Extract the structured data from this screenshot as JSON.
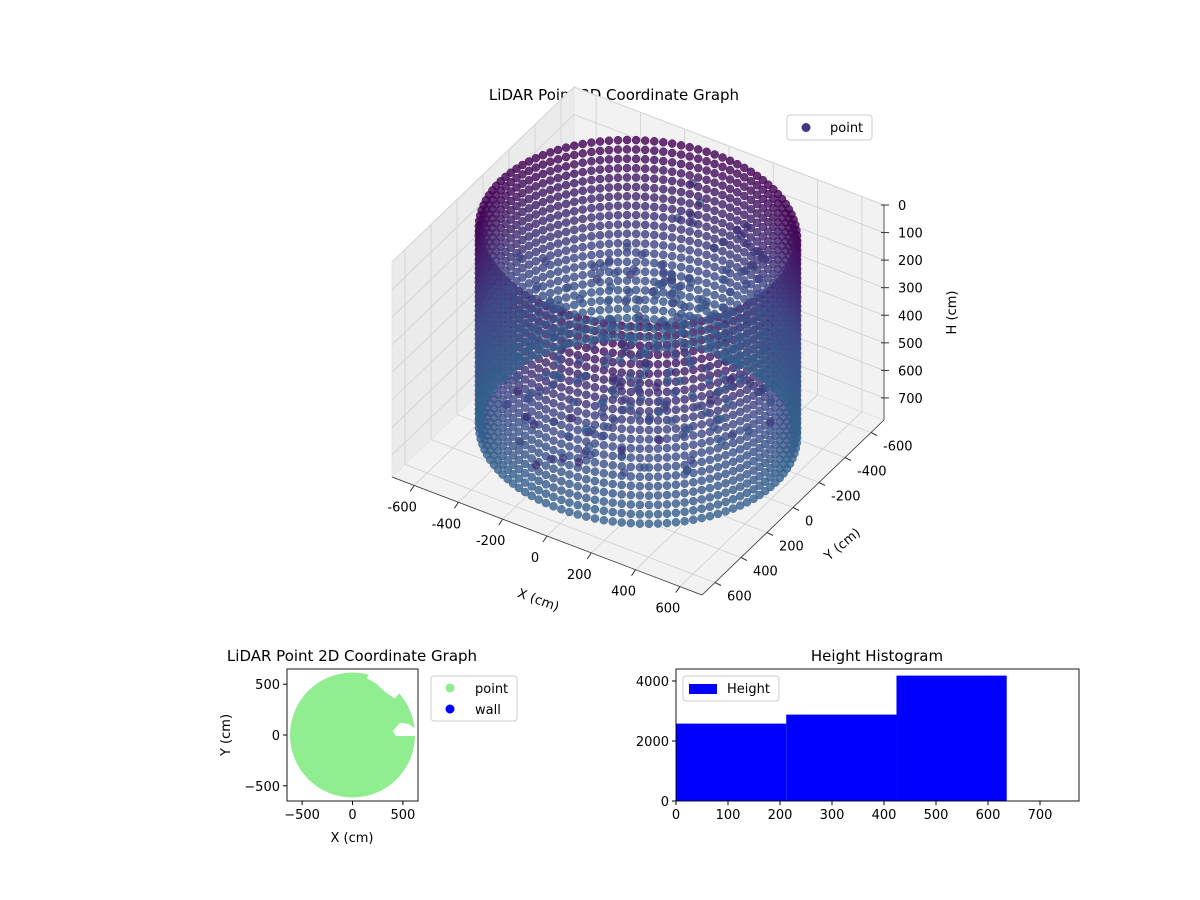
{
  "chart_data": [
    {
      "type": "scatter3d",
      "title": "LiDAR Point 3D Coordinate Graph",
      "xlabel": "X (cm)",
      "ylabel": "Y (cm)",
      "zlabel": "H (cm)",
      "xlim": [
        -700,
        700
      ],
      "ylim": [
        -700,
        700
      ],
      "zlim": [
        0,
        780
      ],
      "z_inverted": true,
      "xticks": [
        -600,
        -400,
        -200,
        0,
        200,
        400,
        600
      ],
      "yticks": [
        -600,
        -400,
        -200,
        0,
        200,
        400,
        600
      ],
      "zticks": [
        0,
        100,
        200,
        300,
        400,
        500,
        600,
        700
      ],
      "grid": true,
      "legend": {
        "position": "upper-right",
        "entries": [
          "point"
        ]
      },
      "point_color": "#45347f",
      "colormap": [
        "#440154",
        "#3e4a89",
        "#31688e"
      ],
      "ring_radius_cm": 620,
      "ring_height_range_cm": [
        0,
        740
      ]
    },
    {
      "type": "scatter",
      "title": "LiDAR Point 2D Coordinate Graph",
      "xlabel": "X (cm)",
      "ylabel": "Y (cm)",
      "xlim": [
        -650,
        650
      ],
      "ylim": [
        -650,
        650
      ],
      "xticks": [
        -500,
        0,
        500
      ],
      "yticks": [
        -500,
        0,
        500
      ],
      "legend": {
        "position": "outside-right",
        "entries": [
          {
            "name": "point",
            "color": "#90ee90"
          },
          {
            "name": "wall",
            "color": "#0000ff"
          }
        ]
      },
      "region": {
        "shape": "disk",
        "center": [
          0,
          0
        ],
        "radius_cm": 620
      }
    },
    {
      "type": "histogram",
      "title": "Height Histogram",
      "legend": {
        "position": "upper-left",
        "entries": [
          "Height"
        ]
      },
      "color": "#0000ff",
      "xlim": [
        0,
        775
      ],
      "ylim": [
        0,
        4400
      ],
      "xticks": [
        0,
        100,
        200,
        300,
        400,
        500,
        600,
        700
      ],
      "yticks": [
        0,
        2000,
        4000
      ],
      "bins": [
        {
          "start": 0,
          "end": 212,
          "count": 2580
        },
        {
          "start": 212,
          "end": 424,
          "count": 2880
        },
        {
          "start": 424,
          "end": 636,
          "count": 4180
        }
      ]
    }
  ]
}
